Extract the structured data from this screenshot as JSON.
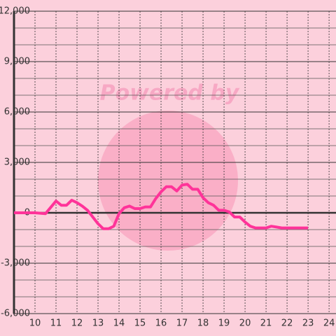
{
  "chart_data": {
    "type": "line",
    "watermark": "Powered by",
    "x": [
      9,
      10,
      10.5,
      11,
      11.25,
      11.5,
      11.75,
      12,
      12.25,
      12.5,
      12.75,
      13,
      13.25,
      13.5,
      13.75,
      14,
      14.25,
      14.5,
      14.75,
      15,
      15.25,
      15.5,
      15.75,
      16,
      16.25,
      16.5,
      16.75,
      17,
      17.25,
      17.5,
      17.75,
      18,
      18.25,
      18.5,
      18.75,
      19,
      19.25,
      19.5,
      19.75,
      20,
      20.25,
      20.5,
      20.75,
      21,
      21.25,
      21.5,
      21.75,
      22,
      22.5,
      23
    ],
    "series": [
      {
        "color": "#ff3399",
        "values": [
          0,
          0,
          -50,
          700,
          450,
          450,
          750,
          600,
          400,
          150,
          -250,
          -650,
          -950,
          -950,
          -800,
          -50,
          300,
          400,
          250,
          250,
          350,
          350,
          850,
          1250,
          1550,
          1550,
          1300,
          1650,
          1700,
          1400,
          1400,
          900,
          600,
          450,
          150,
          150,
          50,
          -250,
          -250,
          -550,
          -800,
          -900,
          -900,
          -900,
          -800,
          -850,
          -900,
          -900,
          -900,
          -900
        ]
      }
    ],
    "xlim": [
      9,
      24.33
    ],
    "xticks": [
      10,
      11,
      12,
      13,
      14,
      15,
      16,
      17,
      18,
      19,
      20,
      21,
      22,
      23,
      24
    ],
    "ylim": [
      -6000,
      12000
    ],
    "yticks": [
      {
        "value": -6000,
        "label": "-6,000"
      },
      {
        "value": -3000,
        "label": "-3,000"
      },
      0,
      {
        "value": 3000,
        "label": "3,000"
      },
      {
        "value": 6000,
        "label": "6,000"
      },
      {
        "value": 9000,
        "label": "9,000"
      },
      {
        "value": 12000,
        "label": "12,000"
      }
    ],
    "minor_yticks": [
      -5000,
      -4000,
      -2000,
      -1000,
      1000,
      2000,
      4000,
      5000,
      7000,
      8000,
      10000,
      11000
    ],
    "grid": true
  }
}
